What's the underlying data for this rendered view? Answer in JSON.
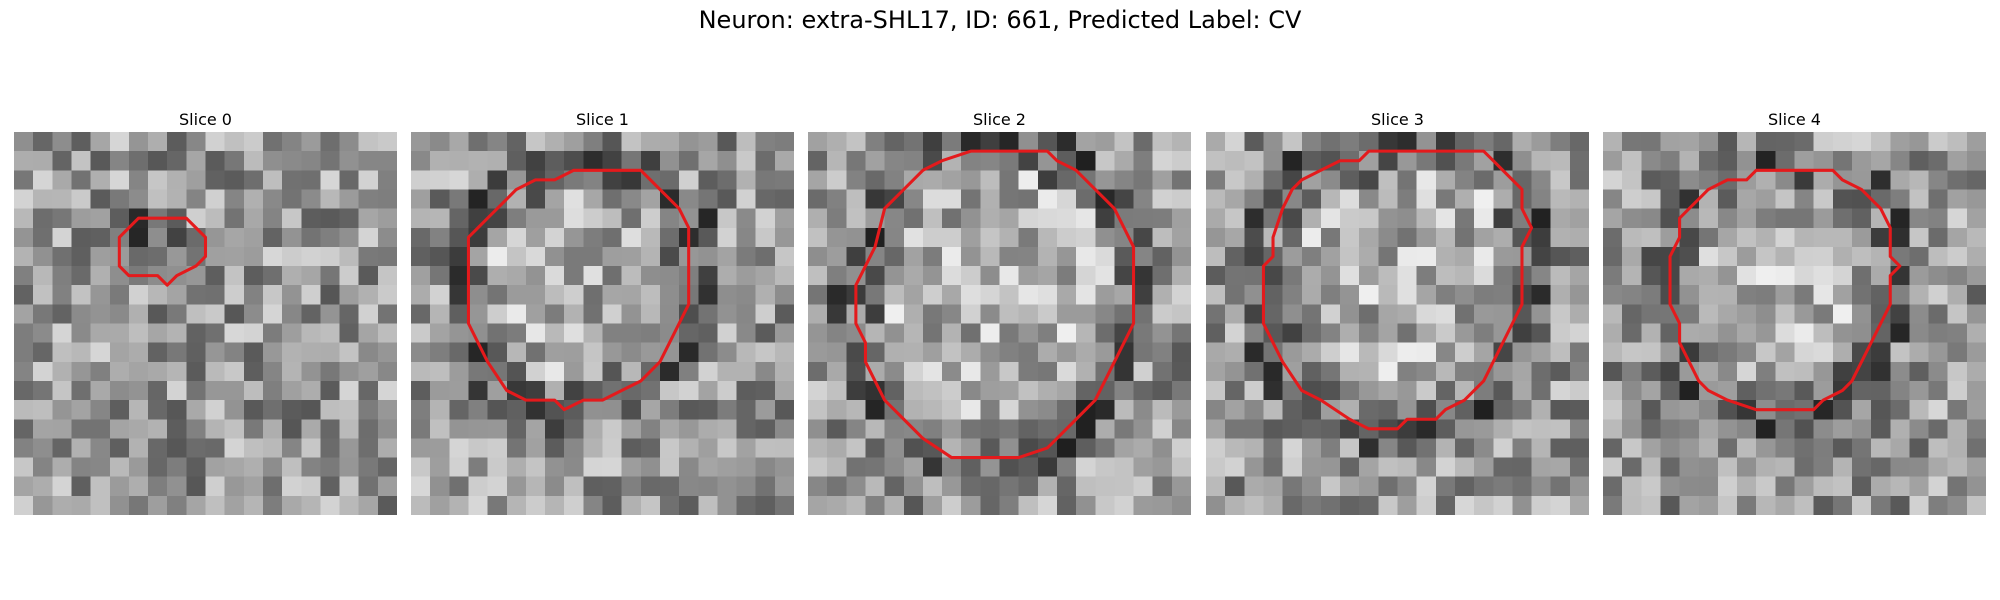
{
  "figure": {
    "title": "Neuron: extra-SHL17, ID: 661, Predicted Label: CV"
  },
  "contour_color": "#e41a1c",
  "colormap": "gray",
  "panels": [
    {
      "title": "Slice 0",
      "contour": [
        [
          8.0,
          4.5
        ],
        [
          9.0,
          4.5
        ],
        [
          9.5,
          5.0
        ],
        [
          10.0,
          5.5
        ],
        [
          10.0,
          6.5
        ],
        [
          9.5,
          7.0
        ],
        [
          8.5,
          7.5
        ],
        [
          8.0,
          8.0
        ],
        [
          7.5,
          7.5
        ],
        [
          6.0,
          7.5
        ],
        [
          5.5,
          7.0
        ],
        [
          5.5,
          5.5
        ],
        [
          6.0,
          5.0
        ],
        [
          6.5,
          4.5
        ]
      ]
    },
    {
      "title": "Slice 1",
      "contour": [
        [
          9.0,
          2.0
        ],
        [
          12.0,
          2.0
        ],
        [
          12.5,
          2.5
        ],
        [
          13.0,
          3.0
        ],
        [
          14.0,
          4.0
        ],
        [
          14.5,
          5.0
        ],
        [
          14.5,
          9.0
        ],
        [
          14.0,
          10.0
        ],
        [
          13.5,
          11.0
        ],
        [
          13.0,
          12.0
        ],
        [
          12.5,
          12.5
        ],
        [
          12.0,
          13.0
        ],
        [
          11.0,
          13.5
        ],
        [
          10.0,
          14.0
        ],
        [
          9.0,
          14.0
        ],
        [
          8.0,
          14.5
        ],
        [
          7.5,
          14.0
        ],
        [
          6.0,
          14.0
        ],
        [
          5.0,
          13.5
        ],
        [
          4.0,
          12.0
        ],
        [
          3.5,
          11.0
        ],
        [
          3.0,
          10.0
        ],
        [
          3.0,
          5.5
        ],
        [
          3.5,
          5.0
        ],
        [
          4.0,
          4.5
        ],
        [
          5.5,
          3.0
        ],
        [
          6.5,
          2.5
        ],
        [
          7.5,
          2.5
        ],
        [
          8.5,
          2.0
        ]
      ]
    },
    {
      "title": "Slice 2",
      "contour": [
        [
          9.5,
          1.0
        ],
        [
          12.5,
          1.0
        ],
        [
          13.0,
          1.5
        ],
        [
          14.0,
          2.0
        ],
        [
          15.0,
          3.0
        ],
        [
          16.0,
          4.0
        ],
        [
          16.5,
          5.0
        ],
        [
          17.0,
          6.0
        ],
        [
          17.0,
          10.0
        ],
        [
          16.5,
          11.0
        ],
        [
          16.0,
          12.0
        ],
        [
          15.5,
          13.0
        ],
        [
          15.0,
          14.0
        ],
        [
          14.0,
          15.0
        ],
        [
          13.0,
          16.0
        ],
        [
          12.5,
          16.5
        ],
        [
          11.0,
          17.0
        ],
        [
          7.5,
          17.0
        ],
        [
          6.0,
          16.0
        ],
        [
          5.0,
          15.0
        ],
        [
          4.0,
          14.0
        ],
        [
          3.5,
          13.0
        ],
        [
          3.0,
          12.0
        ],
        [
          3.0,
          11.0
        ],
        [
          2.5,
          10.0
        ],
        [
          2.5,
          8.0
        ],
        [
          3.0,
          7.0
        ],
        [
          3.5,
          6.0
        ],
        [
          4.0,
          4.0
        ],
        [
          5.0,
          3.0
        ],
        [
          6.0,
          2.0
        ],
        [
          7.0,
          1.5
        ],
        [
          8.5,
          1.0
        ]
      ]
    },
    {
      "title": "Slice 3",
      "contour": [
        [
          8.5,
          1.0
        ],
        [
          14.5,
          1.0
        ],
        [
          15.0,
          1.5
        ],
        [
          16.0,
          2.5
        ],
        [
          16.5,
          3.0
        ],
        [
          16.5,
          4.0
        ],
        [
          17.0,
          5.0
        ],
        [
          16.5,
          6.0
        ],
        [
          16.5,
          9.0
        ],
        [
          16.0,
          10.0
        ],
        [
          15.5,
          11.0
        ],
        [
          15.0,
          12.0
        ],
        [
          14.5,
          13.0
        ],
        [
          13.5,
          14.0
        ],
        [
          12.5,
          14.5
        ],
        [
          12.0,
          15.0
        ],
        [
          10.5,
          15.0
        ],
        [
          10.0,
          15.5
        ],
        [
          8.5,
          15.5
        ],
        [
          7.5,
          15.0
        ],
        [
          6.0,
          14.0
        ],
        [
          5.0,
          13.5
        ],
        [
          4.0,
          12.0
        ],
        [
          3.5,
          11.0
        ],
        [
          3.0,
          10.0
        ],
        [
          3.0,
          7.0
        ],
        [
          3.5,
          6.5
        ],
        [
          3.5,
          5.5
        ],
        [
          4.0,
          4.0
        ],
        [
          4.5,
          3.0
        ],
        [
          5.0,
          2.5
        ],
        [
          6.0,
          2.0
        ],
        [
          7.0,
          1.5
        ],
        [
          8.0,
          1.5
        ]
      ]
    },
    {
      "title": "Slice 4",
      "contour": [
        [
          8.0,
          2.0
        ],
        [
          12.0,
          2.0
        ],
        [
          12.5,
          2.5
        ],
        [
          13.5,
          3.0
        ],
        [
          14.0,
          3.5
        ],
        [
          14.5,
          4.0
        ],
        [
          15.0,
          5.0
        ],
        [
          15.0,
          6.5
        ],
        [
          15.5,
          7.0
        ],
        [
          15.0,
          7.5
        ],
        [
          15.0,
          9.0
        ],
        [
          14.5,
          10.0
        ],
        [
          14.0,
          11.0
        ],
        [
          13.5,
          12.0
        ],
        [
          13.0,
          13.0
        ],
        [
          12.5,
          13.5
        ],
        [
          11.5,
          14.0
        ],
        [
          11.0,
          14.5
        ],
        [
          8.0,
          14.5
        ],
        [
          6.5,
          14.0
        ],
        [
          5.5,
          13.5
        ],
        [
          5.0,
          13.0
        ],
        [
          4.5,
          12.0
        ],
        [
          4.0,
          11.0
        ],
        [
          4.0,
          10.0
        ],
        [
          3.5,
          9.0
        ],
        [
          3.5,
          6.5
        ],
        [
          4.0,
          5.5
        ],
        [
          4.0,
          4.5
        ],
        [
          4.5,
          4.0
        ],
        [
          5.0,
          3.5
        ],
        [
          5.5,
          3.0
        ],
        [
          6.5,
          2.5
        ],
        [
          7.5,
          2.5
        ]
      ]
    }
  ]
}
